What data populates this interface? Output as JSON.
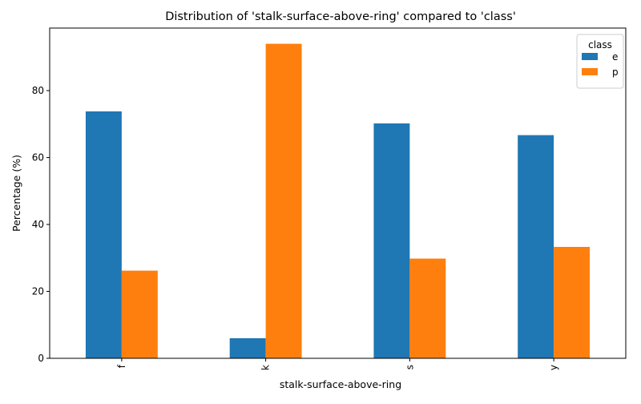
{
  "chart_data": {
    "type": "bar",
    "title": "Distribution of 'stalk-surface-above-ring' compared to 'class'",
    "xlabel": "stalk-surface-above-ring",
    "ylabel": "Percentage (%)",
    "categories": [
      "f",
      "k",
      "s",
      "y"
    ],
    "series": [
      {
        "name": "e",
        "color": "#1f77b4",
        "values": [
          73.8,
          6.0,
          70.2,
          66.7
        ]
      },
      {
        "name": "p",
        "color": "#ff7f0e",
        "values": [
          26.2,
          94.0,
          29.8,
          33.3
        ]
      }
    ],
    "ylim": [
      0,
      98.7
    ],
    "yticks": [
      0,
      20,
      40,
      60,
      80
    ],
    "grid": false,
    "legend": {
      "title": "class",
      "placement": "top-right"
    }
  }
}
